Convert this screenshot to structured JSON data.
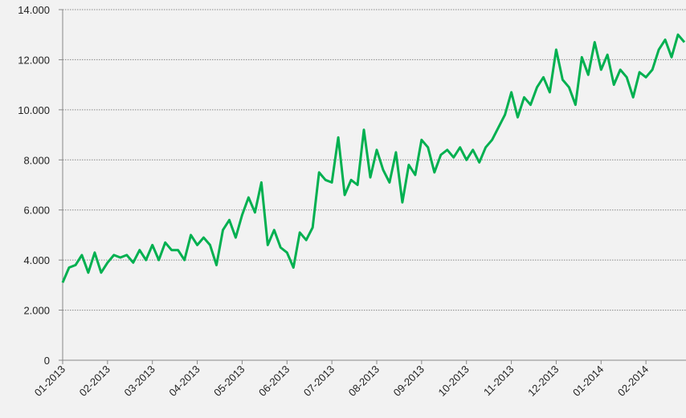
{
  "chart_data": {
    "type": "line",
    "x": [
      "01-2013",
      "01-2013",
      "01-2013",
      "01-2013",
      "01-2013",
      "01-2013",
      "01-2013",
      "02-2013",
      "02-2013",
      "02-2013",
      "02-2013",
      "02-2013",
      "02-2013",
      "02-2013",
      "03-2013",
      "03-2013",
      "03-2013",
      "03-2013",
      "03-2013",
      "03-2013",
      "03-2013",
      "04-2013",
      "04-2013",
      "04-2013",
      "04-2013",
      "04-2013",
      "04-2013",
      "04-2013",
      "05-2013",
      "05-2013",
      "05-2013",
      "05-2013",
      "05-2013",
      "05-2013",
      "05-2013",
      "06-2013",
      "06-2013",
      "06-2013",
      "06-2013",
      "06-2013",
      "06-2013",
      "06-2013",
      "07-2013",
      "07-2013",
      "07-2013",
      "07-2013",
      "07-2013",
      "07-2013",
      "07-2013",
      "08-2013",
      "08-2013",
      "08-2013",
      "08-2013",
      "08-2013",
      "08-2013",
      "08-2013",
      "09-2013",
      "09-2013",
      "09-2013",
      "09-2013",
      "09-2013",
      "09-2013",
      "09-2013",
      "10-2013",
      "10-2013",
      "10-2013",
      "10-2013",
      "10-2013",
      "10-2013",
      "10-2013",
      "11-2013",
      "11-2013",
      "11-2013",
      "11-2013",
      "11-2013",
      "11-2013",
      "11-2013",
      "12-2013",
      "12-2013",
      "12-2013",
      "12-2013",
      "12-2013",
      "12-2013",
      "12-2013",
      "01-2014",
      "01-2014",
      "01-2014",
      "01-2014",
      "01-2014",
      "01-2014",
      "01-2014",
      "02-2014",
      "02-2014",
      "02-2014",
      "02-2014",
      "02-2014",
      "02-2014",
      "02-2014"
    ],
    "series": [
      {
        "color": "#00b050",
        "values": [
          3100,
          3700,
          3800,
          4200,
          3500,
          4300,
          3500,
          3900,
          4200,
          4100,
          4200,
          3900,
          4400,
          4000,
          4600,
          4000,
          4700,
          4400,
          4400,
          4000,
          5000,
          4600,
          4900,
          4600,
          3800,
          5200,
          5600,
          4900,
          5800,
          6500,
          5900,
          7100,
          4600,
          5200,
          4500,
          4300,
          3700,
          5100,
          4800,
          5300,
          7500,
          7200,
          7100,
          8900,
          6600,
          7200,
          7000,
          9200,
          7300,
          8400,
          7600,
          7100,
          8300,
          6300,
          7800,
          7400,
          8800,
          8500,
          7500,
          8200,
          8400,
          8100,
          8500,
          8000,
          8400,
          7900,
          8500,
          8800,
          9300,
          9800,
          10700,
          9700,
          10500,
          10200,
          10900,
          11300,
          10700,
          12400,
          11200,
          10900,
          10200,
          12100,
          11400,
          12700,
          11600,
          12200,
          11000,
          11600,
          11300,
          10500,
          11500,
          11300,
          11600,
          12400,
          12800,
          12100,
          13000,
          12700
        ]
      }
    ],
    "xticks": [
      "01-2013",
      "02-2013",
      "03-2013",
      "04-2013",
      "05-2013",
      "06-2013",
      "07-2013",
      "08-2013",
      "09-2013",
      "10-2013",
      "11-2013",
      "12-2013",
      "01-2014",
      "02-2014"
    ],
    "ylim": [
      0,
      14000
    ],
    "yticks": [
      0,
      {
        "value": 2000,
        "label": "2.000"
      },
      {
        "value": 4000,
        "label": "4.000"
      },
      {
        "value": 6000,
        "label": "6.000"
      },
      {
        "value": 8000,
        "label": "8.000"
      },
      {
        "value": 10000,
        "label": "10.000"
      },
      {
        "value": 12000,
        "label": "12.000"
      },
      {
        "value": 14000,
        "label": "14.000"
      }
    ],
    "grid": true
  }
}
